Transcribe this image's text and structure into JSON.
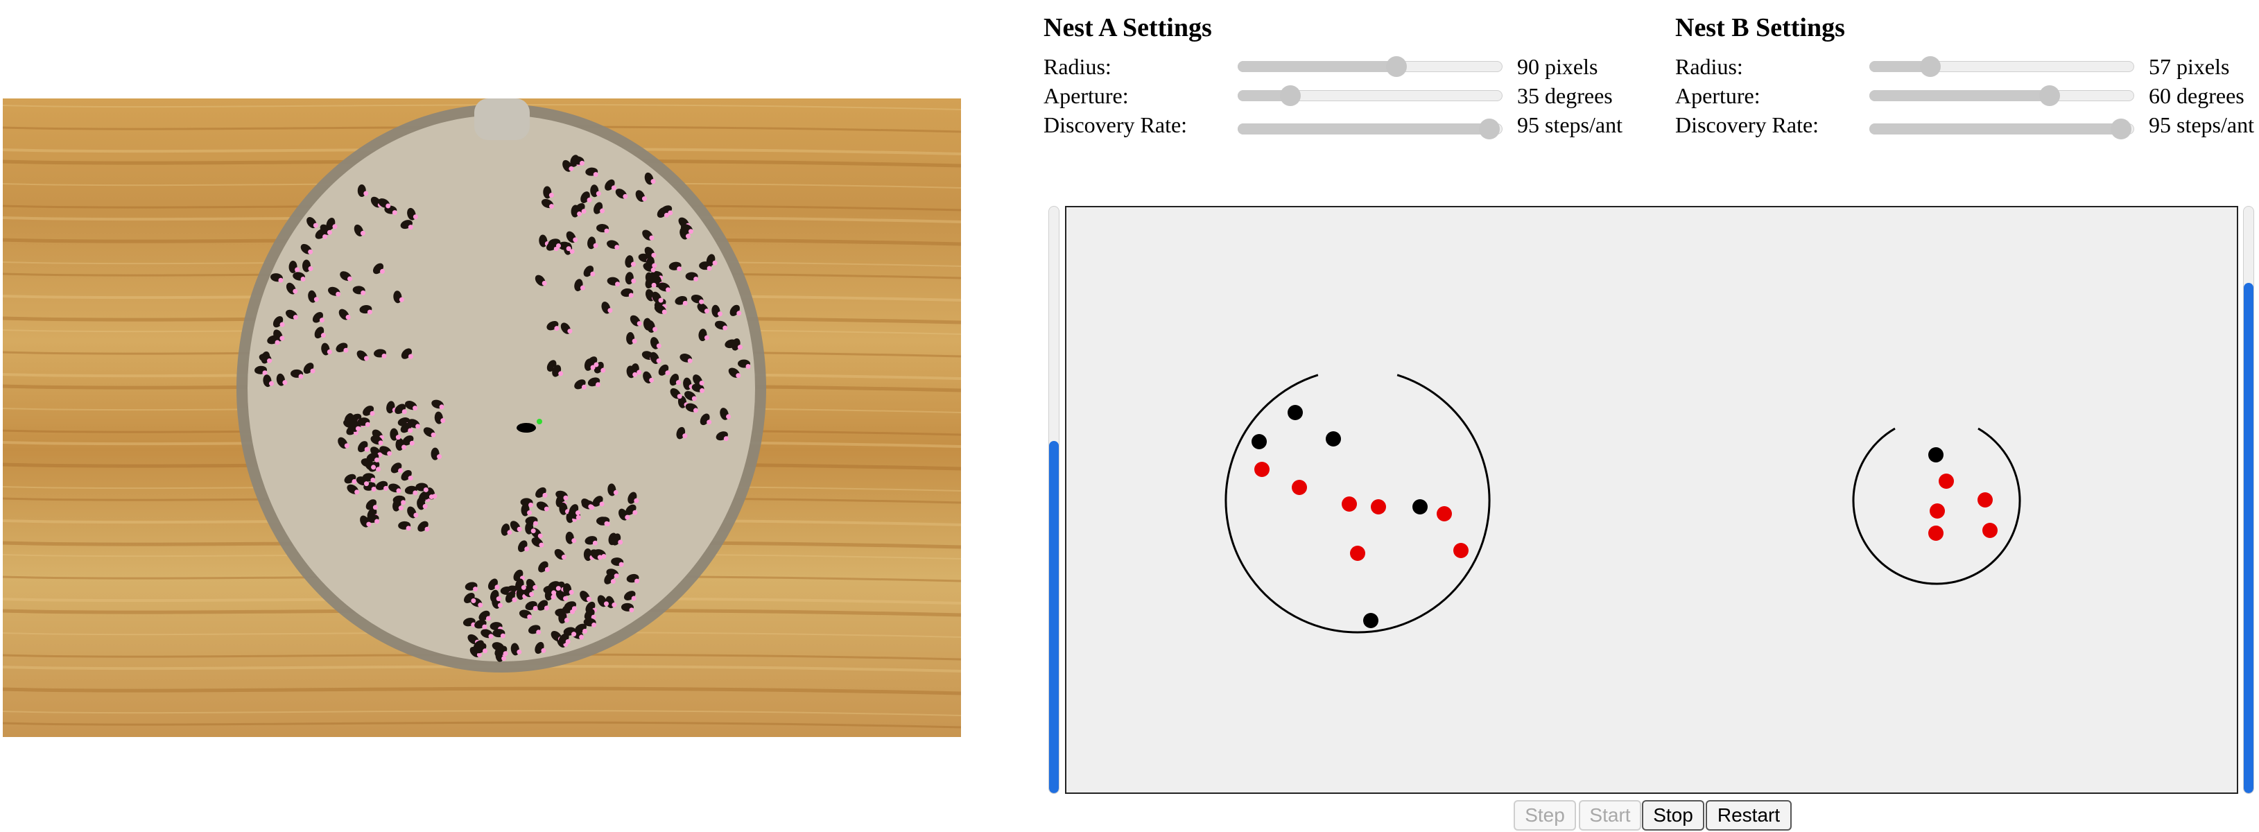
{
  "nest_a": {
    "title": "Nest A Settings",
    "radius": {
      "label": "Radius:",
      "value_text": "90 pixels",
      "fraction": 0.6
    },
    "aperture": {
      "label": "Aperture:",
      "value_text": "35 degrees",
      "fraction": 0.2
    },
    "discovery": {
      "label": "Discovery Rate:",
      "value_text": "95 steps/ant",
      "fraction": 0.95
    }
  },
  "nest_b": {
    "title": "Nest B Settings",
    "radius": {
      "label": "Radius:",
      "value_text": "57 pixels",
      "fraction": 0.23
    },
    "aperture": {
      "label": "Aperture:",
      "value_text": "60 degrees",
      "fraction": 0.68
    },
    "discovery": {
      "label": "Discovery Rate:",
      "value_text": "95 steps/ant",
      "fraction": 0.95
    }
  },
  "population": {
    "left_fraction": 0.6,
    "right_fraction": 0.87
  },
  "colors": {
    "track_fill": "#1f6fe0",
    "ant_red": "#e60000",
    "ant_black": "#000000",
    "arena": "#efefef"
  },
  "controls": {
    "step": {
      "label": "Step",
      "enabled": false
    },
    "start": {
      "label": "Start",
      "enabled": false
    },
    "stop": {
      "label": "Stop",
      "enabled": true
    },
    "restart": {
      "label": "Restart",
      "enabled": true
    }
  },
  "photo": {
    "icon": "ant-colony-photo"
  }
}
